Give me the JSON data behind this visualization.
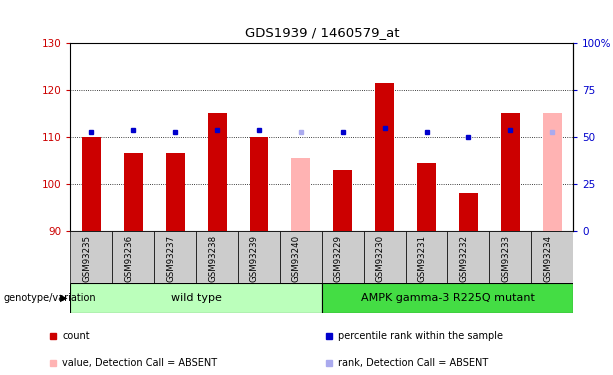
{
  "title": "GDS1939 / 1460579_at",
  "samples": [
    "GSM93235",
    "GSM93236",
    "GSM93237",
    "GSM93238",
    "GSM93239",
    "GSM93240",
    "GSM93229",
    "GSM93230",
    "GSM93231",
    "GSM93232",
    "GSM93233",
    "GSM93234"
  ],
  "red_values": [
    110,
    106.5,
    106.5,
    115,
    110,
    null,
    103,
    121.5,
    104.5,
    98,
    115,
    null
  ],
  "pink_values": [
    null,
    null,
    null,
    null,
    null,
    105.5,
    null,
    null,
    null,
    null,
    null,
    115
  ],
  "blue_values": [
    111,
    111.5,
    111,
    111.5,
    111.5,
    null,
    111,
    112,
    111,
    110,
    111.5,
    null
  ],
  "lightblue_values": [
    null,
    null,
    null,
    null,
    null,
    111,
    null,
    null,
    null,
    null,
    null,
    111
  ],
  "ymin": 90,
  "ymax": 130,
  "yticks_left": [
    90,
    100,
    110,
    120,
    130
  ],
  "ytick_right_labels": [
    "0",
    "25",
    "50",
    "75",
    "100%"
  ],
  "wild_type_label": "wild type",
  "mutant_label": "AMPK gamma-3 R225Q mutant",
  "genotype_label": "genotype/variation",
  "legend_labels": [
    "count",
    "percentile rank within the sample",
    "value, Detection Call = ABSENT",
    "rank, Detection Call = ABSENT"
  ],
  "red_color": "#cc0000",
  "pink_color": "#ffb3b3",
  "blue_color": "#0000cc",
  "lightblue_color": "#aaaaee",
  "wild_type_bg": "#bbffbb",
  "mutant_bg": "#44dd44",
  "xlabel_area_bg": "#cccccc"
}
